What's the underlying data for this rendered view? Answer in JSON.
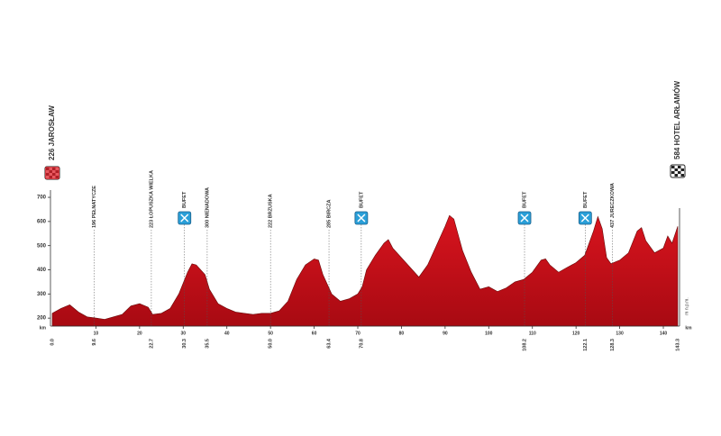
{
  "chart_data": {
    "type": "area",
    "color": "#d8141e",
    "x_unit": "km",
    "y_unit": "m n.p.m.",
    "start": {
      "label": "226 JAROSŁAW",
      "km": {
        "value": 0,
        "label": "0.0"
      }
    },
    "finish": {
      "label": "584 HOTEL ARŁAMÓW",
      "km": 143.3
    },
    "waypoints": [
      {
        "label": "196 PEŁNATYCZE",
        "km": 9.6
      },
      {
        "label": "223 ŁOPUSZKA WIELKA",
        "km": 22.7
      },
      {
        "label": "BUFET",
        "km": 30.3,
        "feed": true
      },
      {
        "label": "300 NIENADOWA",
        "km": 35.5
      },
      {
        "label": "222 BRZUSKA",
        "km": {
          "value": 50,
          "label": "50.0"
        }
      },
      {
        "label": "285 BIRCZA",
        "km": 63.4
      },
      {
        "label": "BUFET",
        "km": 70.8,
        "feed": true
      },
      {
        "label": "BUFET",
        "km": 108.2,
        "feed": true
      },
      {
        "label": "BUFET",
        "km": 122.1,
        "feed": true
      },
      {
        "label": "437 JURECZKOWA",
        "km": 128.3
      }
    ],
    "x": [
      0,
      2,
      4,
      6,
      8,
      10,
      12,
      14,
      16,
      18,
      20,
      22,
      23,
      25,
      27,
      29,
      31,
      32,
      33,
      35,
      36,
      38,
      40,
      42,
      44,
      46,
      48,
      50,
      52,
      54,
      56,
      58,
      60,
      61,
      62,
      64,
      66,
      68,
      70,
      71,
      72,
      74,
      76,
      77,
      78,
      80,
      82,
      84,
      86,
      88,
      90,
      91,
      92,
      94,
      96,
      98,
      100,
      102,
      104,
      106,
      108,
      110,
      112,
      113,
      114,
      116,
      118,
      120,
      122,
      124,
      125,
      126,
      127,
      128,
      130,
      132,
      134,
      135,
      136,
      138,
      140,
      141,
      142,
      143.3
    ],
    "values": [
      220,
      240,
      255,
      225,
      205,
      200,
      195,
      205,
      215,
      250,
      260,
      245,
      215,
      220,
      240,
      300,
      390,
      425,
      420,
      380,
      320,
      260,
      240,
      225,
      220,
      215,
      220,
      220,
      230,
      270,
      360,
      420,
      445,
      440,
      380,
      300,
      270,
      280,
      300,
      330,
      400,
      460,
      510,
      525,
      490,
      450,
      410,
      370,
      420,
      500,
      580,
      625,
      610,
      480,
      390,
      320,
      330,
      310,
      325,
      350,
      360,
      390,
      440,
      445,
      420,
      390,
      410,
      430,
      460,
      560,
      620,
      570,
      450,
      425,
      440,
      470,
      560,
      575,
      520,
      470,
      490,
      540,
      510,
      580
    ],
    "xlim": [
      0,
      143.3
    ],
    "ylim": [
      167,
      730
    ],
    "xticks": [
      10,
      20,
      30,
      40,
      50,
      60,
      70,
      80,
      90,
      100,
      110,
      120,
      130,
      140
    ],
    "yticks": [
      200,
      300,
      400,
      500,
      600,
      700
    ]
  }
}
